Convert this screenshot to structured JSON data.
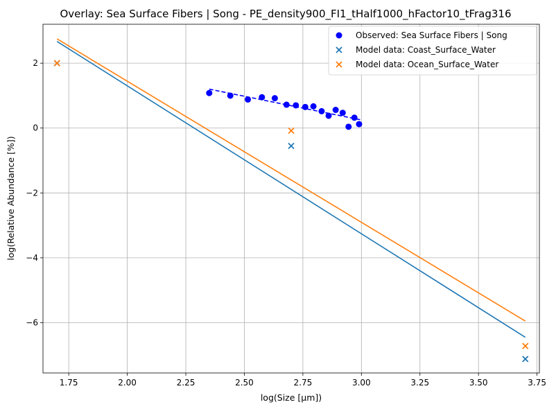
{
  "chart_data": {
    "type": "scatter",
    "title": "Overlay: Sea Surface Fibers | Song - PE_density900_FI1_tHalf1000_hFactor10_tFrag316",
    "xlabel": "log(Size [µm])",
    "ylabel": "log(Relative Abundance [%])",
    "xlim": [
      1.64,
      3.76
    ],
    "ylim": [
      -7.55,
      3.2
    ],
    "xticks": [
      1.75,
      2.0,
      2.25,
      2.5,
      2.75,
      3.0,
      3.25,
      3.5,
      3.75
    ],
    "xtick_labels": [
      "1.75",
      "2.00",
      "2.25",
      "2.50",
      "2.75",
      "3.00",
      "3.25",
      "3.50",
      "3.75"
    ],
    "yticks": [
      -6,
      -4,
      -2,
      0,
      2
    ],
    "ytick_labels": [
      "−6",
      "−4",
      "−2",
      "0",
      "2"
    ],
    "grid": true,
    "legend_position": "top-right",
    "series": [
      {
        "name": "Observed: Sea Surface Fibers | Song",
        "kind": "scatter",
        "marker": "circle",
        "color": "#0000ff",
        "x": [
          2.35,
          2.44,
          2.515,
          2.575,
          2.63,
          2.68,
          2.72,
          2.76,
          2.795,
          2.83,
          2.86,
          2.89,
          2.92,
          2.945,
          2.97,
          2.99
        ],
        "y": [
          1.08,
          1.0,
          0.88,
          0.95,
          0.92,
          0.72,
          0.7,
          0.65,
          0.67,
          0.52,
          0.38,
          0.56,
          0.47,
          0.04,
          0.32,
          0.12
        ]
      },
      {
        "name": "Observed fit",
        "kind": "line",
        "style": "dashed",
        "color": "#0000ff",
        "x": [
          2.35,
          3.0
        ],
        "y": [
          1.2,
          0.25
        ]
      },
      {
        "name": "Model data: Coast_Surface_Water",
        "kind": "scatter",
        "marker": "x",
        "color": "#1f77b4",
        "x": [
          1.7,
          2.7,
          3.7
        ],
        "y": [
          2.0,
          -0.55,
          -7.12
        ]
      },
      {
        "name": "Model data: Ocean_Surface_Water",
        "kind": "scatter",
        "marker": "x",
        "color": "#ff7f0e",
        "x": [
          1.7,
          2.7,
          3.7
        ],
        "y": [
          2.0,
          -0.08,
          -6.72
        ]
      },
      {
        "name": "Coast fit",
        "kind": "line",
        "style": "solid",
        "color": "#1f77b4",
        "x": [
          1.7,
          3.7
        ],
        "y": [
          2.67,
          -6.45
        ]
      },
      {
        "name": "Ocean fit",
        "kind": "line",
        "style": "solid",
        "color": "#ff7f0e",
        "x": [
          1.7,
          3.7
        ],
        "y": [
          2.75,
          -5.95
        ]
      }
    ],
    "legend": [
      {
        "label": "Observed: Sea Surface Fibers | Song",
        "marker": "circle",
        "color": "#0000ff"
      },
      {
        "label": "Model data: Coast_Surface_Water",
        "marker": "x",
        "color": "#1f77b4"
      },
      {
        "label": "Model data: Ocean_Surface_Water",
        "marker": "x",
        "color": "#ff7f0e"
      }
    ]
  }
}
